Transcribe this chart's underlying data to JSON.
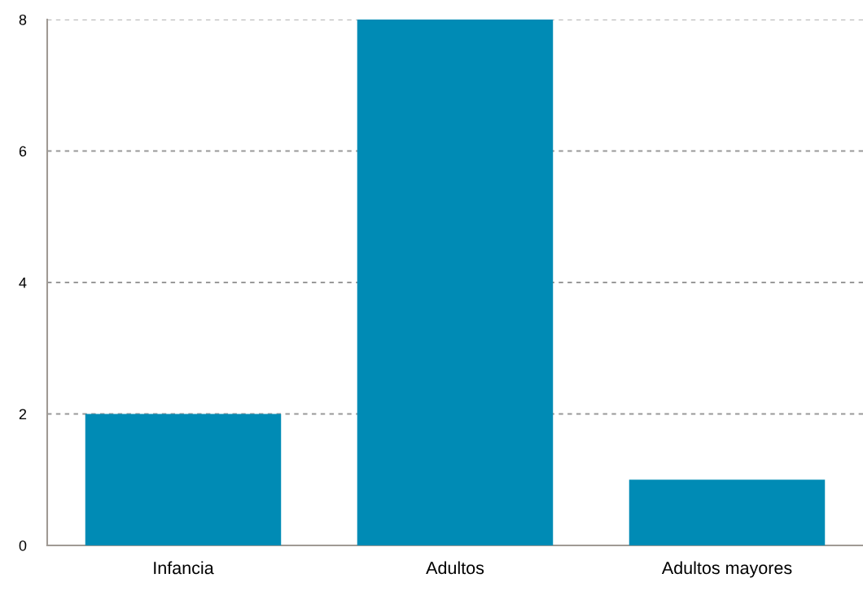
{
  "chart_data": {
    "type": "bar",
    "categories": [
      "Infancia",
      "Adultos",
      "Adultos mayores"
    ],
    "values": [
      2,
      8,
      1
    ],
    "color": "#008bb5",
    "ylim": [
      0,
      8
    ],
    "yticks": [
      0,
      2,
      4,
      6,
      8
    ],
    "grid": "y"
  }
}
